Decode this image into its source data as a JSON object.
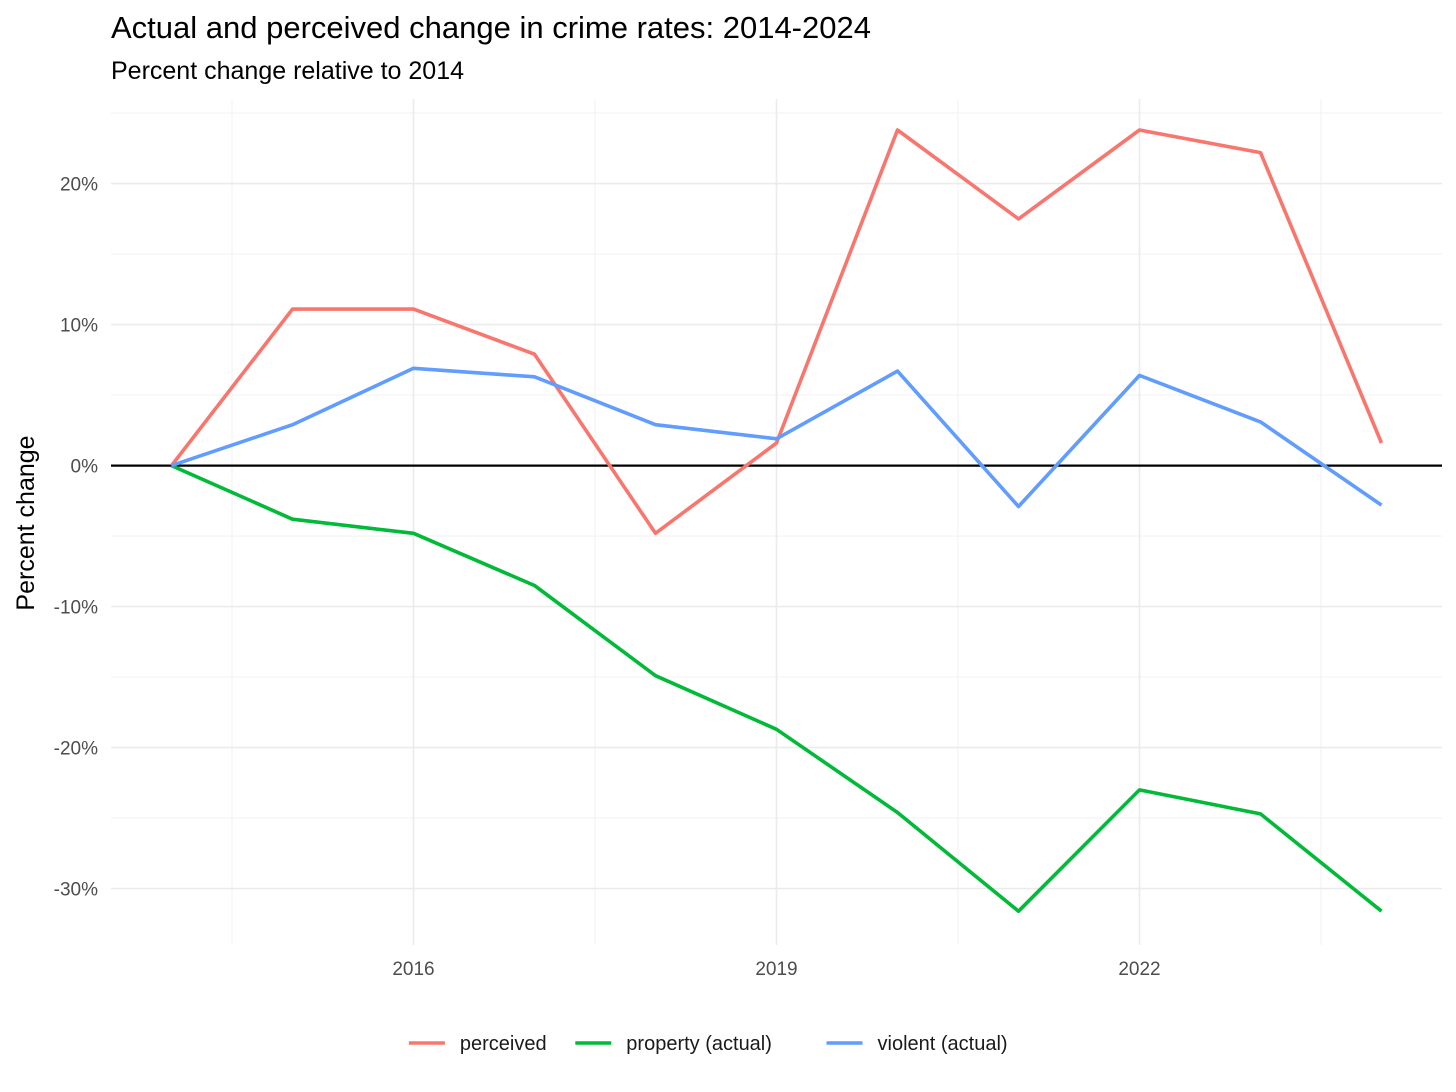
{
  "chart_data": {
    "type": "line",
    "title": "Actual and perceived change in crime rates: 2014-2024",
    "subtitle": "Percent change relative to 2014",
    "xlabel": "",
    "ylabel": "Percent change",
    "x": [
      2014,
      2015,
      2016,
      2017,
      2018,
      2019,
      2020,
      2021,
      2022,
      2023,
      2024
    ],
    "xlim": [
      2013.5,
      2024.5
    ],
    "x_ticks": [
      2016,
      2019,
      2022
    ],
    "x_tick_labels": [
      "2016",
      "2019",
      "2022"
    ],
    "ylim": [
      -34,
      26
    ],
    "y_ticks": [
      -30,
      -20,
      -10,
      0,
      10,
      20
    ],
    "y_tick_labels": [
      "-30%",
      "-20%",
      "-10%",
      "0%",
      "10%",
      "20%"
    ],
    "grid": true,
    "reference_line": 0,
    "legend_position": "bottom",
    "series": [
      {
        "name": "perceived",
        "color": "#F8766D",
        "values": [
          0,
          11.1,
          11.1,
          7.9,
          -4.8,
          1.6,
          23.8,
          17.5,
          23.8,
          22.2,
          1.6
        ]
      },
      {
        "name": "property (actual)",
        "color": "#00BA38",
        "values": [
          0,
          -3.8,
          -4.8,
          -8.5,
          -14.9,
          -18.7,
          -24.6,
          -31.6,
          -23.0,
          -24.7,
          -31.6
        ]
      },
      {
        "name": "violent (actual)",
        "color": "#619CFF",
        "values": [
          0,
          2.9,
          6.9,
          6.3,
          2.9,
          1.9,
          6.7,
          -2.9,
          6.4,
          3.1,
          -2.8
        ]
      }
    ]
  }
}
